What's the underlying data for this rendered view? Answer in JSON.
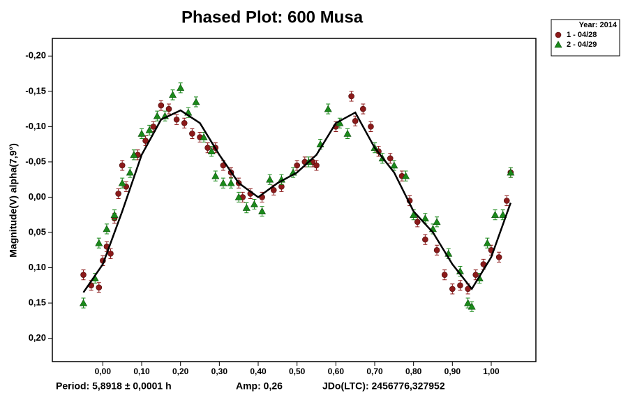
{
  "chart_data": {
    "type": "scatter",
    "title": "Phased Plot: 600 Musa",
    "y_label": "Magnitude(V) alpha(7,9°)",
    "footer": [
      "Period: 5,8918 ± 0,0001 h",
      "Amp: 0,26",
      "JDo(LTC): 2456776,327952"
    ],
    "legend_title": "Year: 2014",
    "legend": "outside-upper-right",
    "grid": false,
    "xlim": [
      -0.13,
      1.115
    ],
    "ylim": [
      0.233,
      -0.225
    ],
    "xticks": [
      {
        "value": 0,
        "label": "0,00"
      },
      {
        "value": 0.1,
        "label": "0,10"
      },
      {
        "value": 0.2,
        "label": "0,20"
      },
      {
        "value": 0.3,
        "label": "0,30"
      },
      {
        "value": 0.4,
        "label": "0,40"
      },
      {
        "value": 0.5,
        "label": "0,50"
      },
      {
        "value": 0.6,
        "label": "0,60"
      },
      {
        "value": 0.7,
        "label": "0,70"
      },
      {
        "value": 0.8,
        "label": "0,80"
      },
      {
        "value": 0.9,
        "label": "0,90"
      },
      {
        "value": 1,
        "label": "1,00"
      }
    ],
    "yticks": [
      {
        "value": -0.2,
        "label": "-0,20"
      },
      {
        "value": -0.15,
        "label": "-0,15"
      },
      {
        "value": -0.1,
        "label": "-0,10"
      },
      {
        "value": -0.05,
        "label": "-0,05"
      },
      {
        "value": 0,
        "label": "0,00"
      },
      {
        "value": 0.05,
        "label": "0,05"
      },
      {
        "value": 0.1,
        "label": "0,10"
      },
      {
        "value": 0.15,
        "label": "0,15"
      },
      {
        "value": 0.2,
        "label": "0,20"
      }
    ],
    "series": [
      {
        "name": "1 - 04/28",
        "color": "#8b1a1a",
        "marker": "circle",
        "error": 0.007,
        "x": [
          -0.05,
          -0.03,
          -0.01,
          0.0,
          0.01,
          0.02,
          0.03,
          0.04,
          0.05,
          0.06,
          0.09,
          0.11,
          0.13,
          0.15,
          0.17,
          0.19,
          0.21,
          0.23,
          0.25,
          0.27,
          0.29,
          0.31,
          0.33,
          0.35,
          0.36,
          0.38,
          0.41,
          0.44,
          0.46,
          0.5,
          0.52,
          0.54,
          0.55,
          0.6,
          0.64,
          0.65,
          0.67,
          0.69,
          0.71,
          0.74,
          0.77,
          0.79,
          0.81,
          0.83,
          0.86,
          0.88,
          0.9,
          0.92,
          0.94,
          0.96,
          0.98,
          1.0,
          1.02,
          1.04,
          1.05
        ],
        "values": [
          0.11,
          0.125,
          0.128,
          0.09,
          0.07,
          0.08,
          0.03,
          -0.005,
          -0.045,
          -0.015,
          -0.06,
          -0.08,
          -0.1,
          -0.13,
          -0.125,
          -0.11,
          -0.105,
          -0.09,
          -0.085,
          -0.07,
          -0.07,
          -0.045,
          -0.035,
          -0.02,
          0.0,
          -0.005,
          0.0,
          -0.01,
          -0.015,
          -0.045,
          -0.05,
          -0.05,
          -0.045,
          -0.1,
          -0.143,
          -0.108,
          -0.125,
          -0.1,
          -0.065,
          -0.055,
          -0.03,
          0.005,
          0.035,
          0.06,
          0.075,
          0.11,
          0.13,
          0.125,
          0.13,
          0.11,
          0.095,
          0.075,
          0.085,
          0.005,
          -0.035
        ]
      },
      {
        "name": "2 - 04/29",
        "color": "#1a8a1a",
        "marker": "triangle",
        "error": 0.007,
        "x": [
          -0.05,
          -0.02,
          -0.01,
          0.01,
          0.03,
          0.05,
          0.07,
          0.08,
          0.1,
          0.12,
          0.14,
          0.16,
          0.18,
          0.2,
          0.22,
          0.24,
          0.26,
          0.28,
          0.29,
          0.31,
          0.33,
          0.35,
          0.37,
          0.39,
          0.41,
          0.43,
          0.46,
          0.49,
          0.53,
          0.56,
          0.58,
          0.61,
          0.63,
          0.7,
          0.72,
          0.75,
          0.78,
          0.8,
          0.83,
          0.85,
          0.86,
          0.89,
          0.92,
          0.94,
          0.95,
          0.97,
          0.99,
          1.01,
          1.03,
          1.05
        ],
        "values": [
          0.15,
          0.115,
          0.065,
          0.045,
          0.025,
          -0.02,
          -0.035,
          -0.06,
          -0.09,
          -0.095,
          -0.115,
          -0.115,
          -0.145,
          -0.155,
          -0.12,
          -0.135,
          -0.085,
          -0.065,
          -0.03,
          -0.02,
          -0.02,
          0.0,
          0.015,
          0.01,
          0.02,
          -0.025,
          -0.025,
          -0.035,
          -0.05,
          -0.075,
          -0.125,
          -0.105,
          -0.09,
          -0.07,
          -0.055,
          -0.045,
          -0.03,
          0.025,
          0.03,
          0.045,
          0.035,
          0.08,
          0.105,
          0.15,
          0.155,
          0.115,
          0.065,
          0.025,
          0.025,
          -0.035
        ]
      }
    ],
    "fit": {
      "color": "#000000",
      "x": [
        -0.05,
        0.0,
        0.05,
        0.1,
        0.15,
        0.2,
        0.25,
        0.3,
        0.35,
        0.4,
        0.45,
        0.5,
        0.55,
        0.6,
        0.65,
        0.7,
        0.75,
        0.8,
        0.85,
        0.9,
        0.95,
        1.0,
        1.05
      ],
      "values": [
        0.135,
        0.095,
        0.02,
        -0.06,
        -0.11,
        -0.123,
        -0.105,
        -0.06,
        -0.02,
        0.0,
        -0.02,
        -0.035,
        -0.06,
        -0.105,
        -0.12,
        -0.07,
        -0.035,
        0.02,
        0.05,
        0.095,
        0.13,
        0.085,
        0.008
      ]
    }
  }
}
